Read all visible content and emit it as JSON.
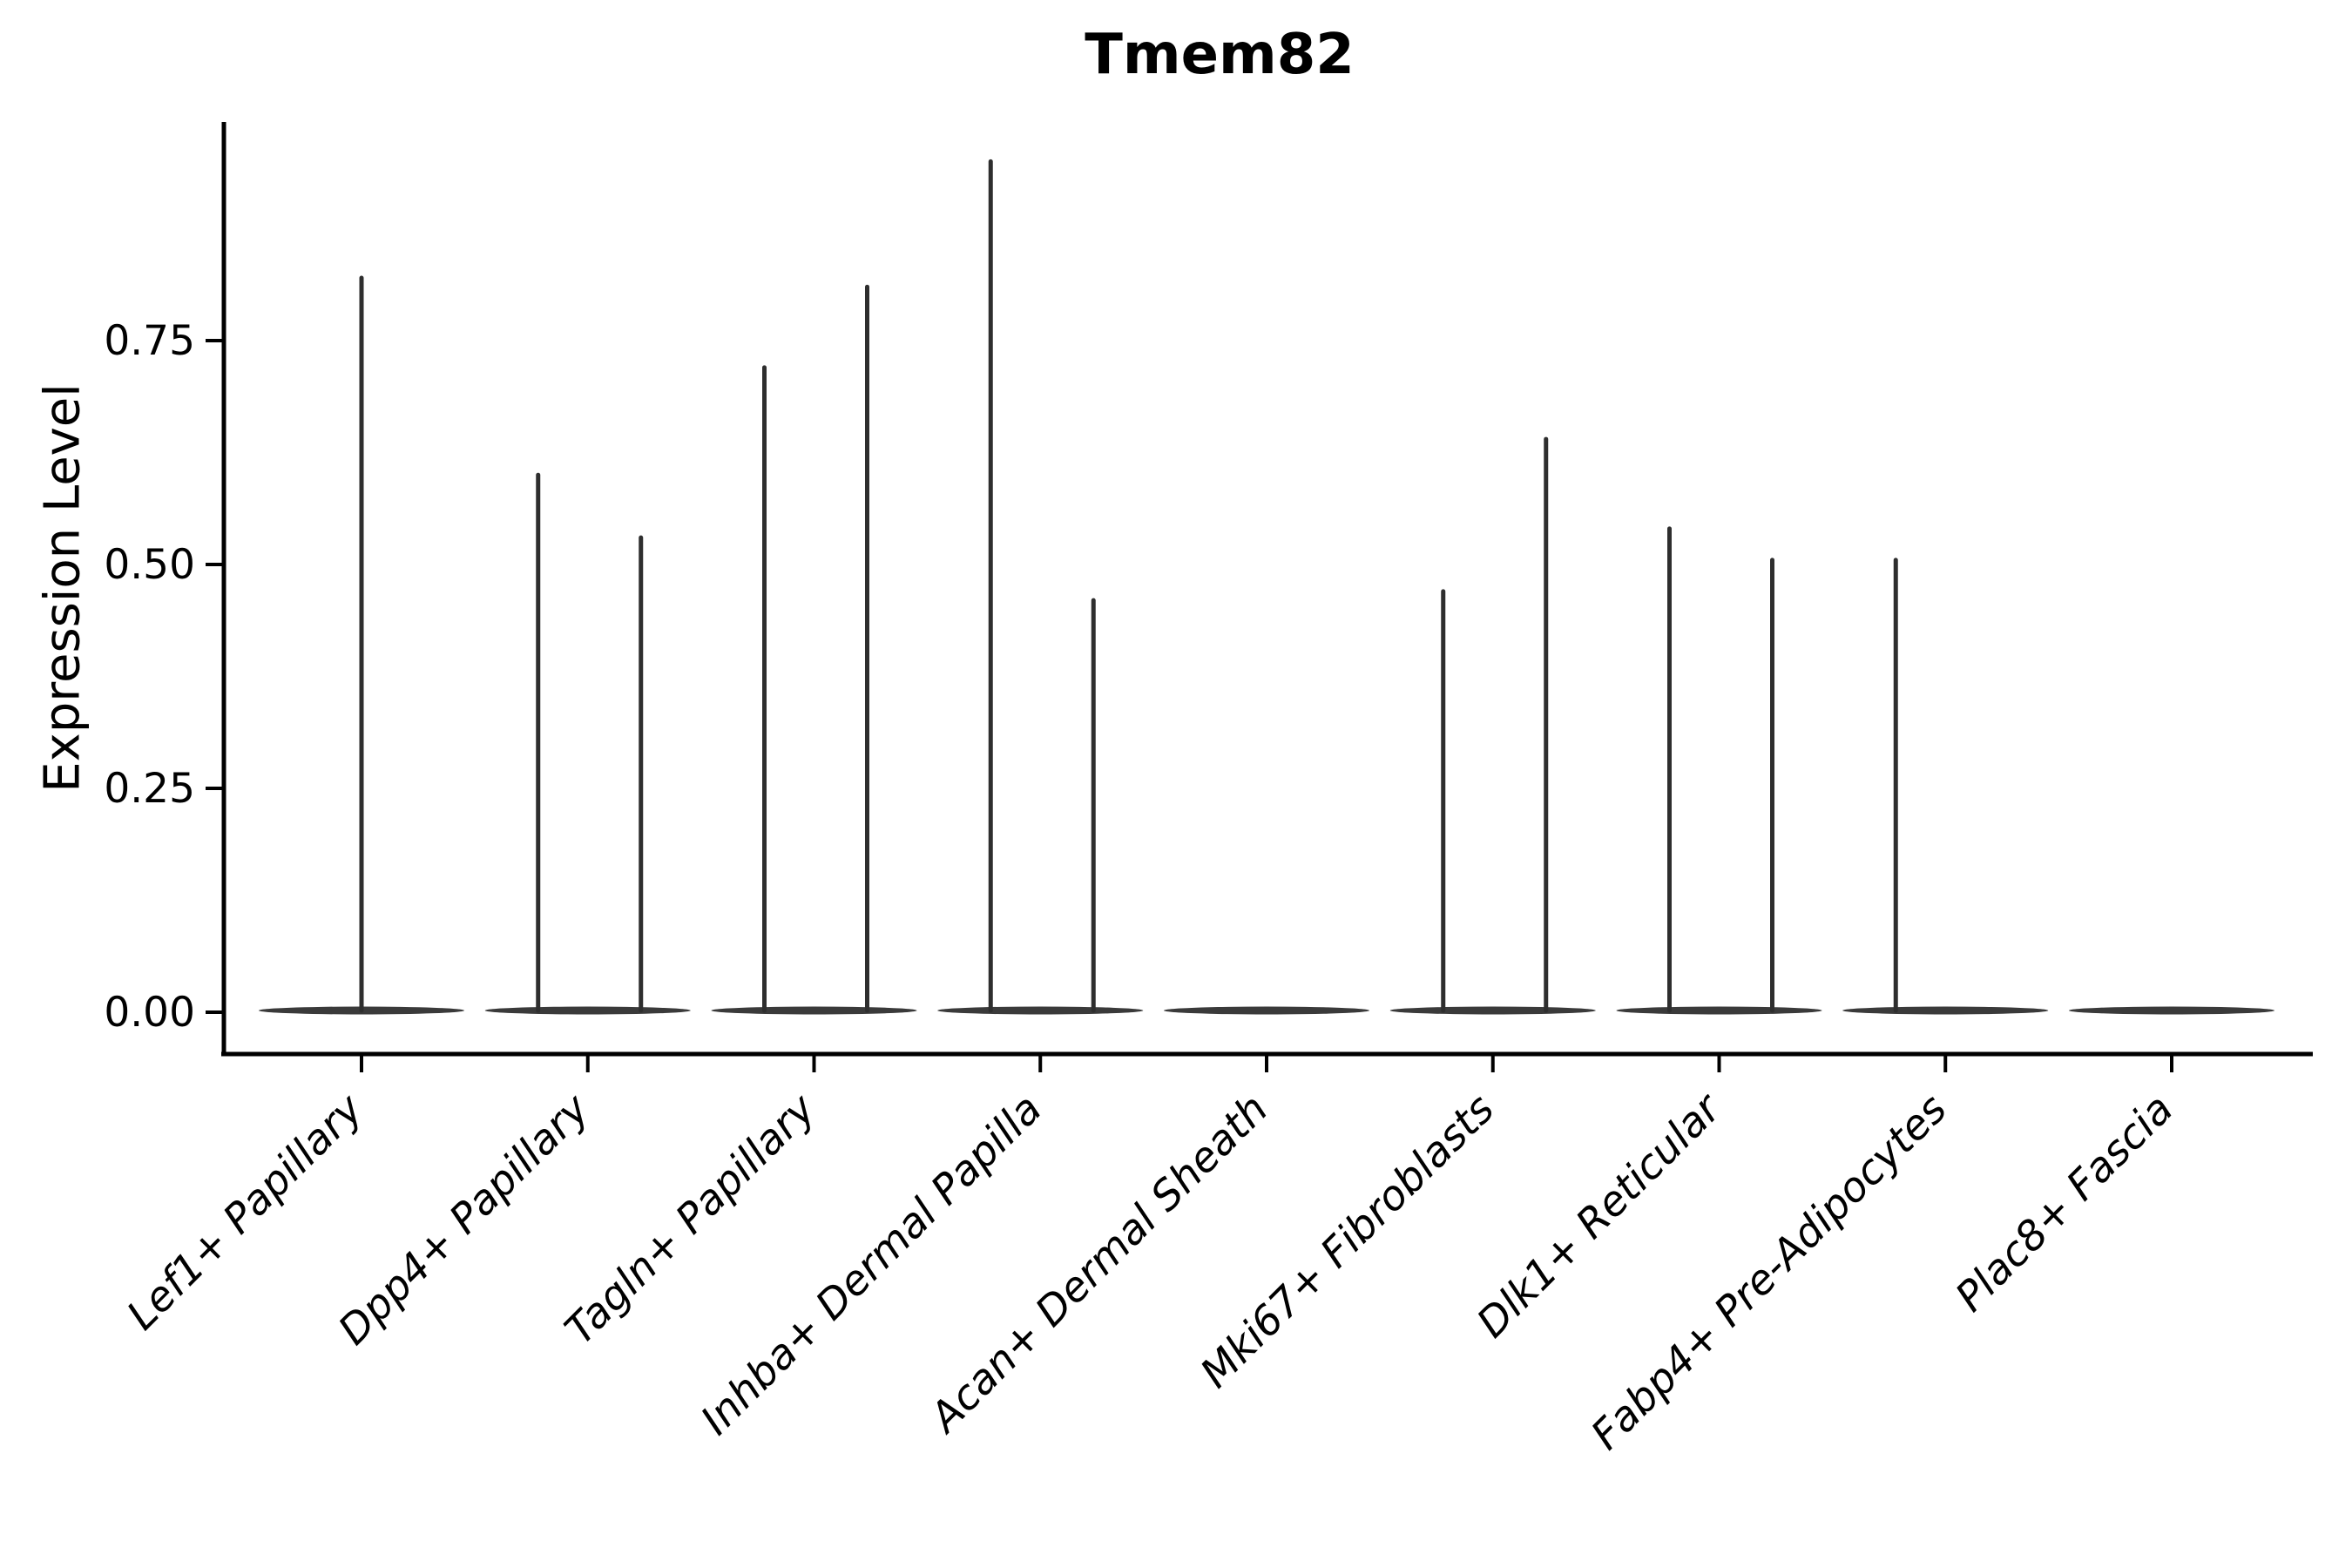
{
  "title": "Tmem82",
  "y_axis": {
    "label": "Expression Level",
    "tick_labels": [
      "0.00",
      "0.25",
      "0.50",
      "0.75"
    ]
  },
  "x_axis": {
    "categories": [
      "Lef1+ Papillary",
      "Dpp4+ Papillary",
      "Tagln+ Papillary",
      "Inhba+ Dermal Papilla",
      "Acan+ Dermal Sheath",
      "Mki67+ Fibroblasts",
      "Dlk1+ Reticular",
      "Fabp4+ Pre-Adipocytes",
      "Plac8+ Fascia"
    ]
  },
  "chart_data": {
    "type": "violin",
    "title": "Tmem82",
    "xlabel": "",
    "ylabel": "Expression Level",
    "ylim": [
      -0.05,
      1.0
    ],
    "grid": false,
    "legend_position": "none",
    "y_ticks": [
      0.0,
      0.25,
      0.5,
      0.75
    ],
    "y_tick_labels": [
      "0.00",
      "0.25",
      "0.50",
      "0.75"
    ],
    "categories": [
      "Lef1+ Papillary",
      "Dpp4+ Papillary",
      "Tagln+ Papillary",
      "Inhba+ Dermal Papilla",
      "Acan+ Dermal Sheath",
      "Mki67+ Fibroblasts",
      "Dlk1+ Reticular",
      "Fabp4+ Pre-Adipocytes",
      "Plac8+ Fascia"
    ],
    "violins": [
      {
        "category": "Lef1+ Papillary",
        "baseline_value": 0,
        "spikes": [
          {
            "position": "center",
            "max": 0.82
          }
        ]
      },
      {
        "category": "Dpp4+ Papillary",
        "baseline_value": 0,
        "spikes": [
          {
            "position": "left",
            "max": 0.6
          },
          {
            "position": "right",
            "max": 0.53
          }
        ]
      },
      {
        "category": "Tagln+ Papillary",
        "baseline_value": 0,
        "spikes": [
          {
            "position": "left",
            "max": 0.72
          },
          {
            "position": "right",
            "max": 0.81
          }
        ]
      },
      {
        "category": "Inhba+ Dermal Papilla",
        "baseline_value": 0,
        "spikes": [
          {
            "position": "left",
            "max": 0.95
          },
          {
            "position": "right",
            "max": 0.46
          }
        ]
      },
      {
        "category": "Acan+ Dermal Sheath",
        "baseline_value": 0,
        "spikes": []
      },
      {
        "category": "Mki67+ Fibroblasts",
        "baseline_value": 0,
        "spikes": [
          {
            "position": "left",
            "max": 0.47
          },
          {
            "position": "right",
            "max": 0.64
          }
        ]
      },
      {
        "category": "Dlk1+ Reticular",
        "baseline_value": 0,
        "spikes": [
          {
            "position": "left",
            "max": 0.54
          },
          {
            "position": "right",
            "max": 0.505
          }
        ]
      },
      {
        "category": "Fabp4+ Pre-Adipocytes",
        "baseline_value": 0,
        "spikes": [
          {
            "position": "left",
            "max": 0.505
          }
        ]
      },
      {
        "category": "Plac8+ Fascia",
        "baseline_value": 0,
        "spikes": []
      }
    ],
    "colors": {
      "violin_base": "#3a3a3a",
      "spike": "#2e2e2e",
      "axis": "#000000",
      "text": "#000000",
      "background": "#ffffff"
    }
  }
}
